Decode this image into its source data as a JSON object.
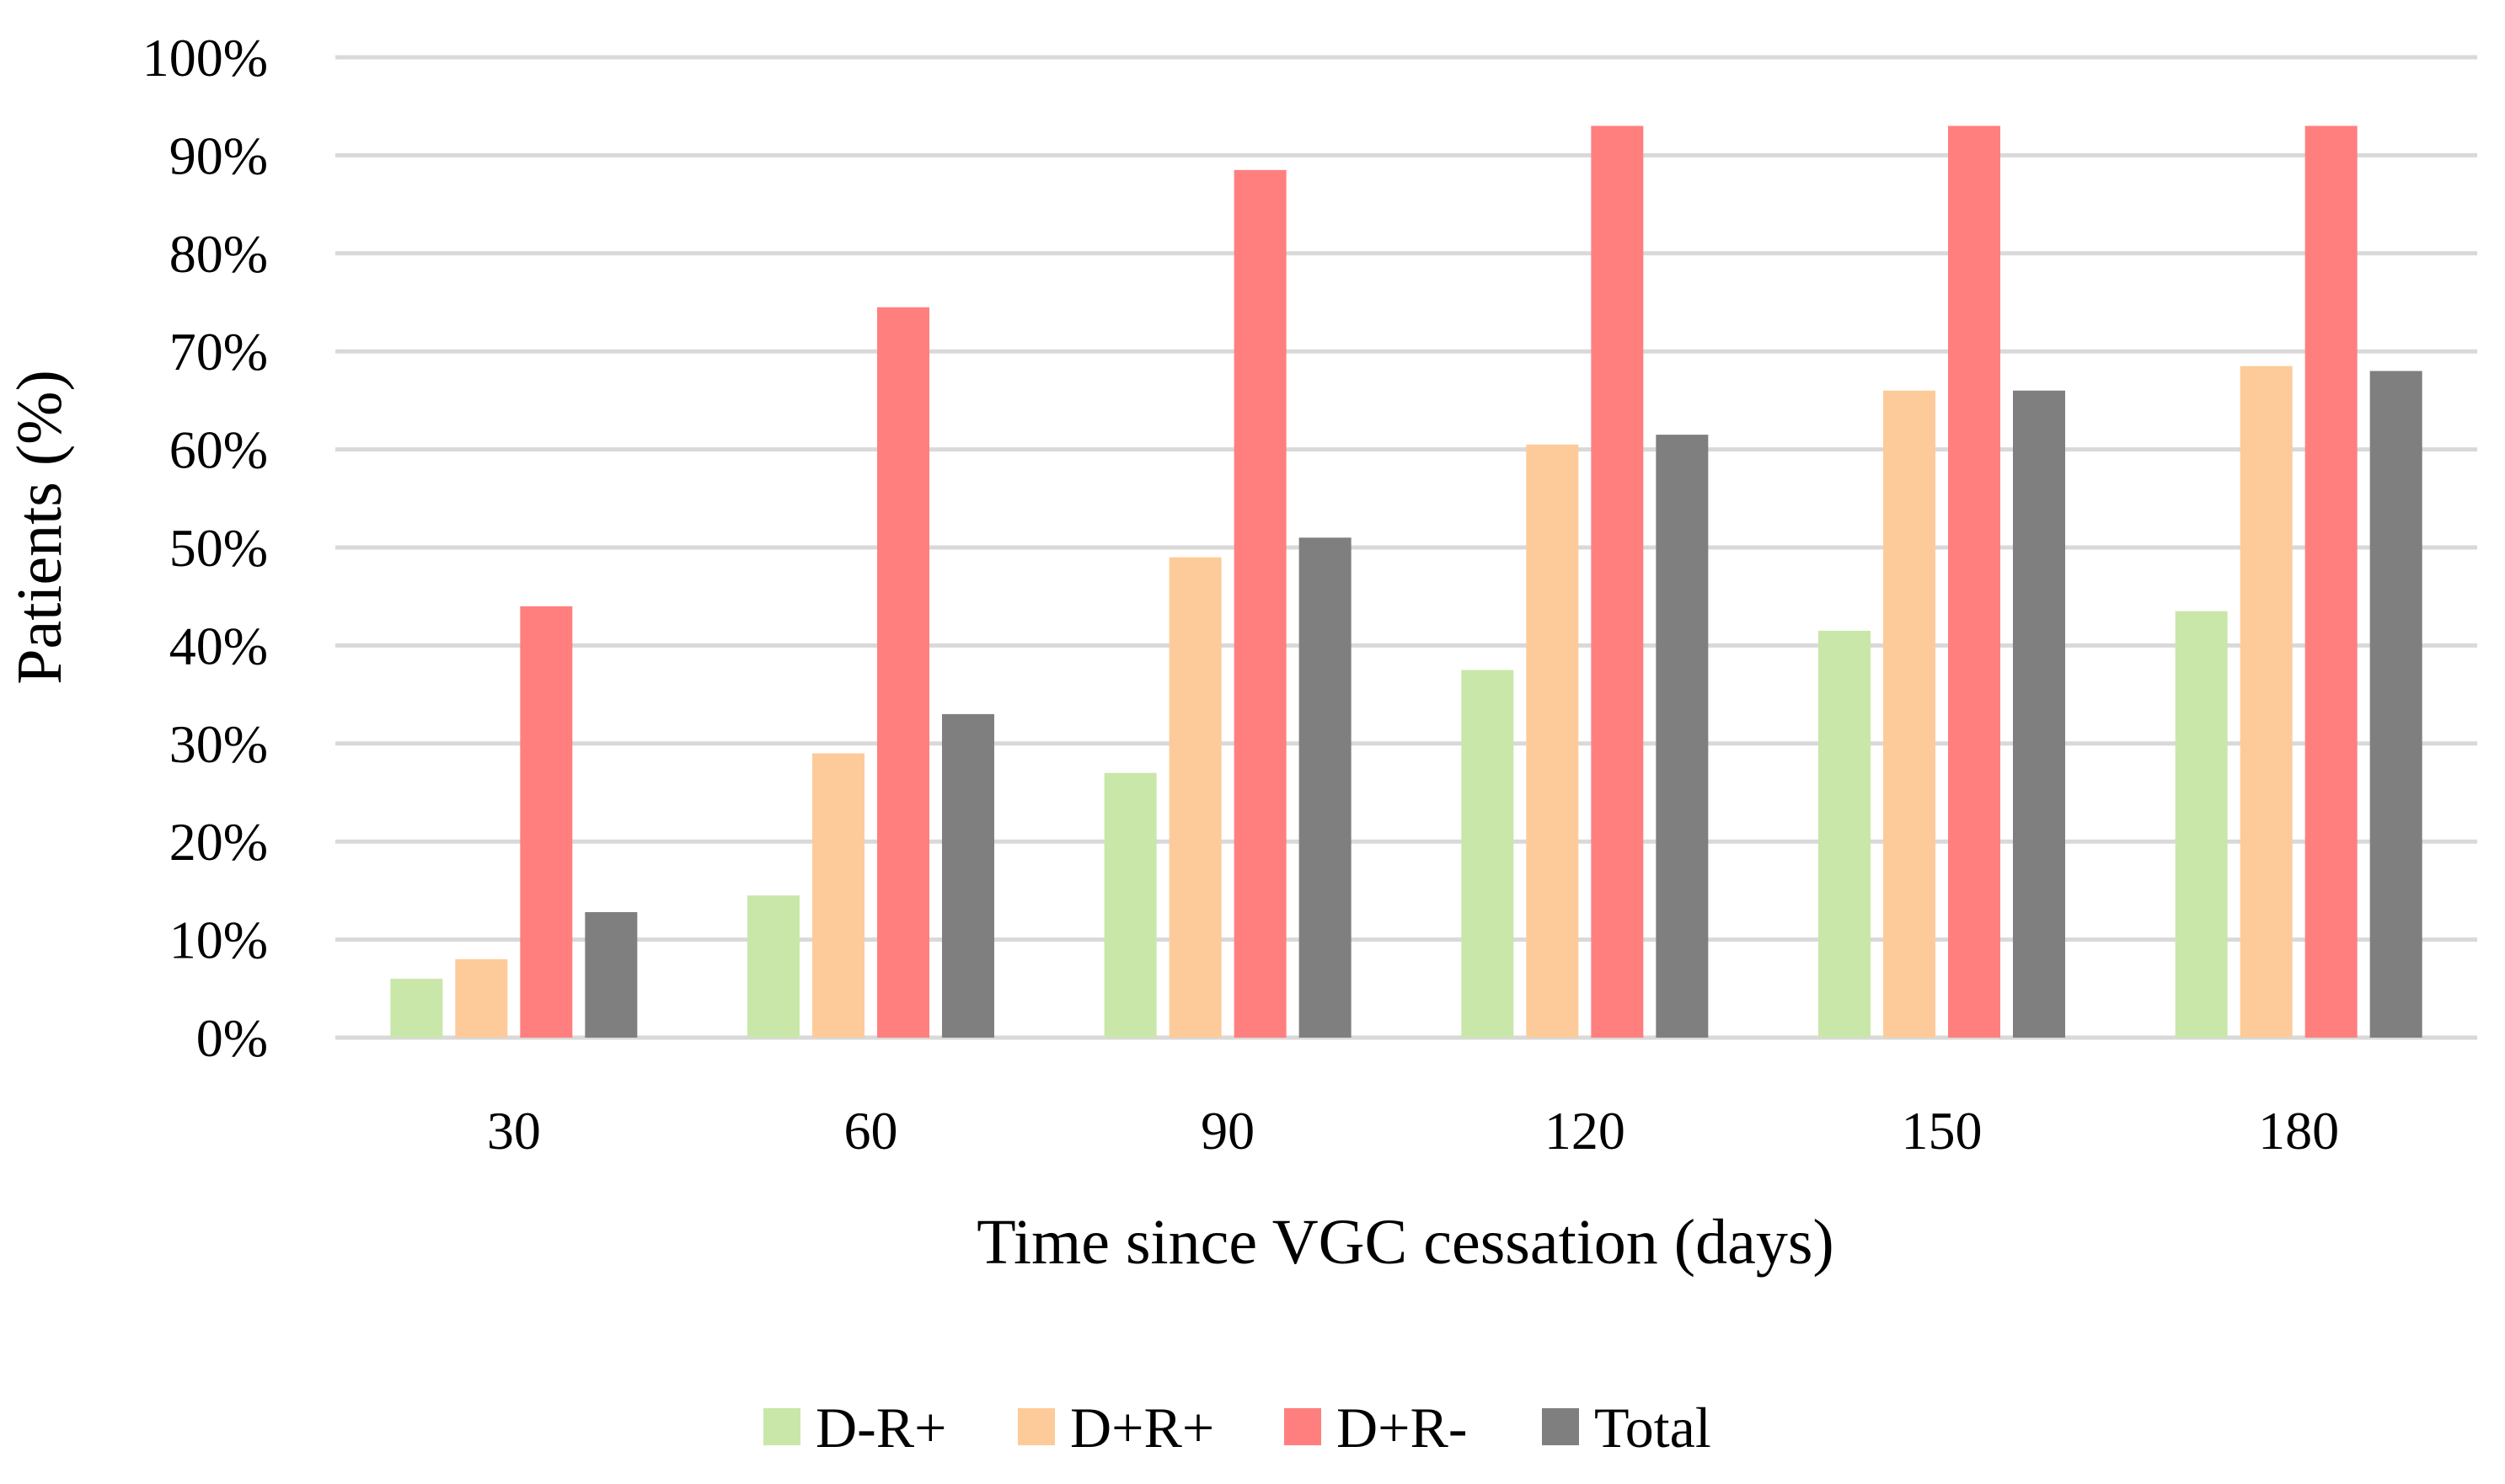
{
  "chart_data": {
    "type": "bar",
    "title": "",
    "xlabel": "Time since VGC cessation (days)",
    "ylabel": "Patients (%)",
    "categories": [
      "30",
      "60",
      "90",
      "120",
      "150",
      "180"
    ],
    "ylim": [
      0,
      100
    ],
    "yticks": [
      0,
      10,
      20,
      30,
      40,
      50,
      60,
      70,
      80,
      90,
      100
    ],
    "ytick_labels": [
      "0%",
      "10%",
      "20%",
      "30%",
      "40%",
      "50%",
      "60%",
      "70%",
      "80%",
      "90%",
      "100%"
    ],
    "grid": true,
    "legend_position": "bottom",
    "series": [
      {
        "name": "D-R+",
        "color": "#c9e7a8",
        "values": [
          6,
          14.5,
          27,
          37.5,
          41.5,
          43.5
        ]
      },
      {
        "name": "D+R+",
        "color": "#fdcb9a",
        "values": [
          8,
          29,
          49,
          60.5,
          66,
          68.5
        ]
      },
      {
        "name": "D+R-",
        "color": "#ff7f7f",
        "values": [
          44,
          74.5,
          88.5,
          93,
          93,
          93
        ]
      },
      {
        "name": "Total",
        "color": "#7f7f7f",
        "values": [
          12.8,
          33,
          51,
          61.5,
          66,
          68
        ]
      }
    ]
  }
}
